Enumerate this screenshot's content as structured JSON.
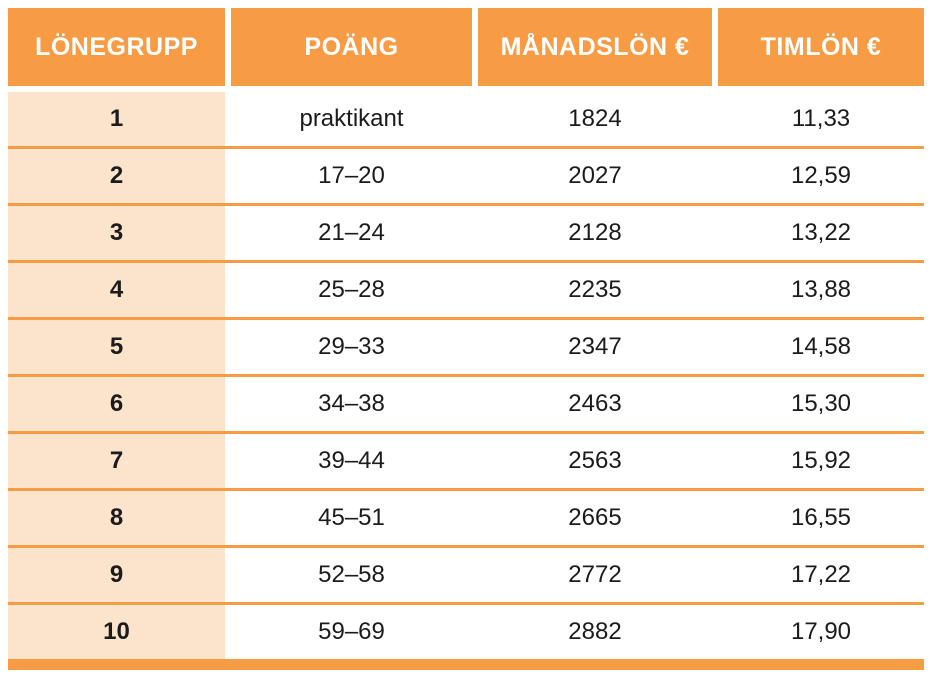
{
  "colors": {
    "header_bg": "#F89B45",
    "row_separator": "#F89B45",
    "bottom_bar": "#F89B45",
    "first_column_bg": "#FCE4CC",
    "header_text": "#FFFFFF",
    "body_text": "#1B1B1B",
    "page_bg": "#FFFFFF"
  },
  "table": {
    "columns": [
      {
        "key": "lonegrupp",
        "label": "LÖNEGRUPP"
      },
      {
        "key": "poang",
        "label": "POÄNG"
      },
      {
        "key": "manadslon",
        "label": "MÅNADSLÖN €"
      },
      {
        "key": "timlon",
        "label": "TIMLÖN €"
      }
    ],
    "rows": [
      {
        "lonegrupp": "1",
        "poang": "praktikant",
        "manadslon": "1824",
        "timlon": "11,33"
      },
      {
        "lonegrupp": "2",
        "poang": "17–20",
        "manadslon": "2027",
        "timlon": "12,59"
      },
      {
        "lonegrupp": "3",
        "poang": "21–24",
        "manadslon": "2128",
        "timlon": "13,22"
      },
      {
        "lonegrupp": "4",
        "poang": "25–28",
        "manadslon": "2235",
        "timlon": "13,88"
      },
      {
        "lonegrupp": "5",
        "poang": "29–33",
        "manadslon": "2347",
        "timlon": "14,58"
      },
      {
        "lonegrupp": "6",
        "poang": "34–38",
        "manadslon": "2463",
        "timlon": "15,30"
      },
      {
        "lonegrupp": "7",
        "poang": "39–44",
        "manadslon": "2563",
        "timlon": "15,92"
      },
      {
        "lonegrupp": "8",
        "poang": "45–51",
        "manadslon": "2665",
        "timlon": "16,55"
      },
      {
        "lonegrupp": "9",
        "poang": "52–58",
        "manadslon": "2772",
        "timlon": "17,22"
      },
      {
        "lonegrupp": "10",
        "poang": "59–69",
        "manadslon": "2882",
        "timlon": "17,90"
      }
    ]
  }
}
